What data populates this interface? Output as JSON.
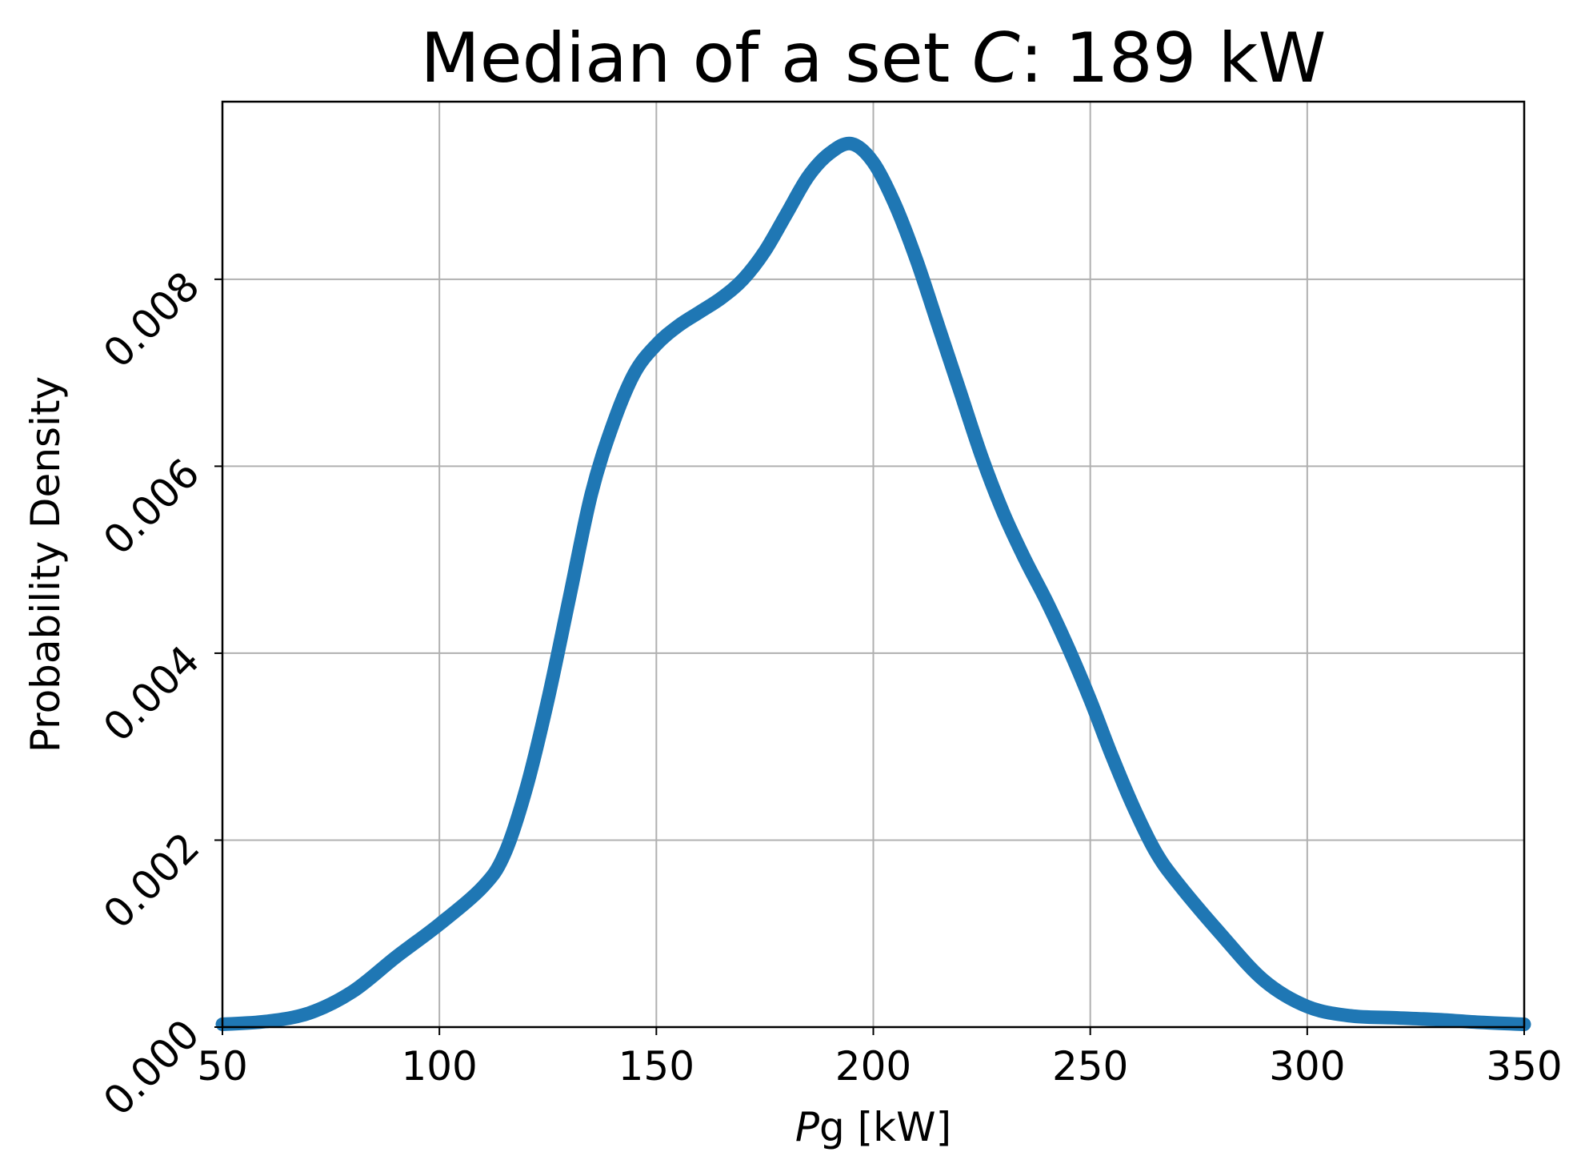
{
  "chart_data": {
    "type": "line",
    "title_prefix": "Median of a set ",
    "title_var": "C",
    "title_suffix": ": 189 kW",
    "xlabel_var": "P",
    "xlabel_rest": "g [kW]",
    "ylabel": "Probability Density",
    "xlim": [
      50,
      350
    ],
    "ylim": [
      0,
      0.0099
    ],
    "xticks": [
      "50",
      "100",
      "150",
      "200",
      "250",
      "300",
      "350"
    ],
    "yticks": [
      "0.000",
      "0.002",
      "0.004",
      "0.006",
      "0.008"
    ],
    "grid": true,
    "line_color": "#1f77b4",
    "series": [
      {
        "x": [
          50,
          60,
          70,
          80,
          90,
          100,
          110,
          115,
          120,
          125,
          130,
          135,
          140,
          145,
          150,
          155,
          160,
          165,
          170,
          175,
          180,
          185,
          190,
          195,
          200,
          205,
          210,
          215,
          220,
          225,
          230,
          235,
          240,
          245,
          250,
          255,
          260,
          265,
          270,
          280,
          290,
          300,
          310,
          320,
          330,
          340,
          350
        ],
        "y": [
          3e-05,
          6e-05,
          0.00015,
          0.00038,
          0.00075,
          0.0011,
          0.0015,
          0.00185,
          0.00255,
          0.0035,
          0.0046,
          0.0057,
          0.00645,
          0.007,
          0.0073,
          0.0075,
          0.00765,
          0.0078,
          0.008,
          0.0083,
          0.0087,
          0.0091,
          0.00935,
          0.00945,
          0.00925,
          0.0088,
          0.0082,
          0.0075,
          0.0068,
          0.0061,
          0.0055,
          0.005,
          0.00455,
          0.00405,
          0.0035,
          0.0029,
          0.00235,
          0.00188,
          0.00155,
          0.001,
          0.0005,
          0.00022,
          0.00012,
          0.0001,
          8e-05,
          5e-05,
          3e-05
        ]
      }
    ]
  }
}
